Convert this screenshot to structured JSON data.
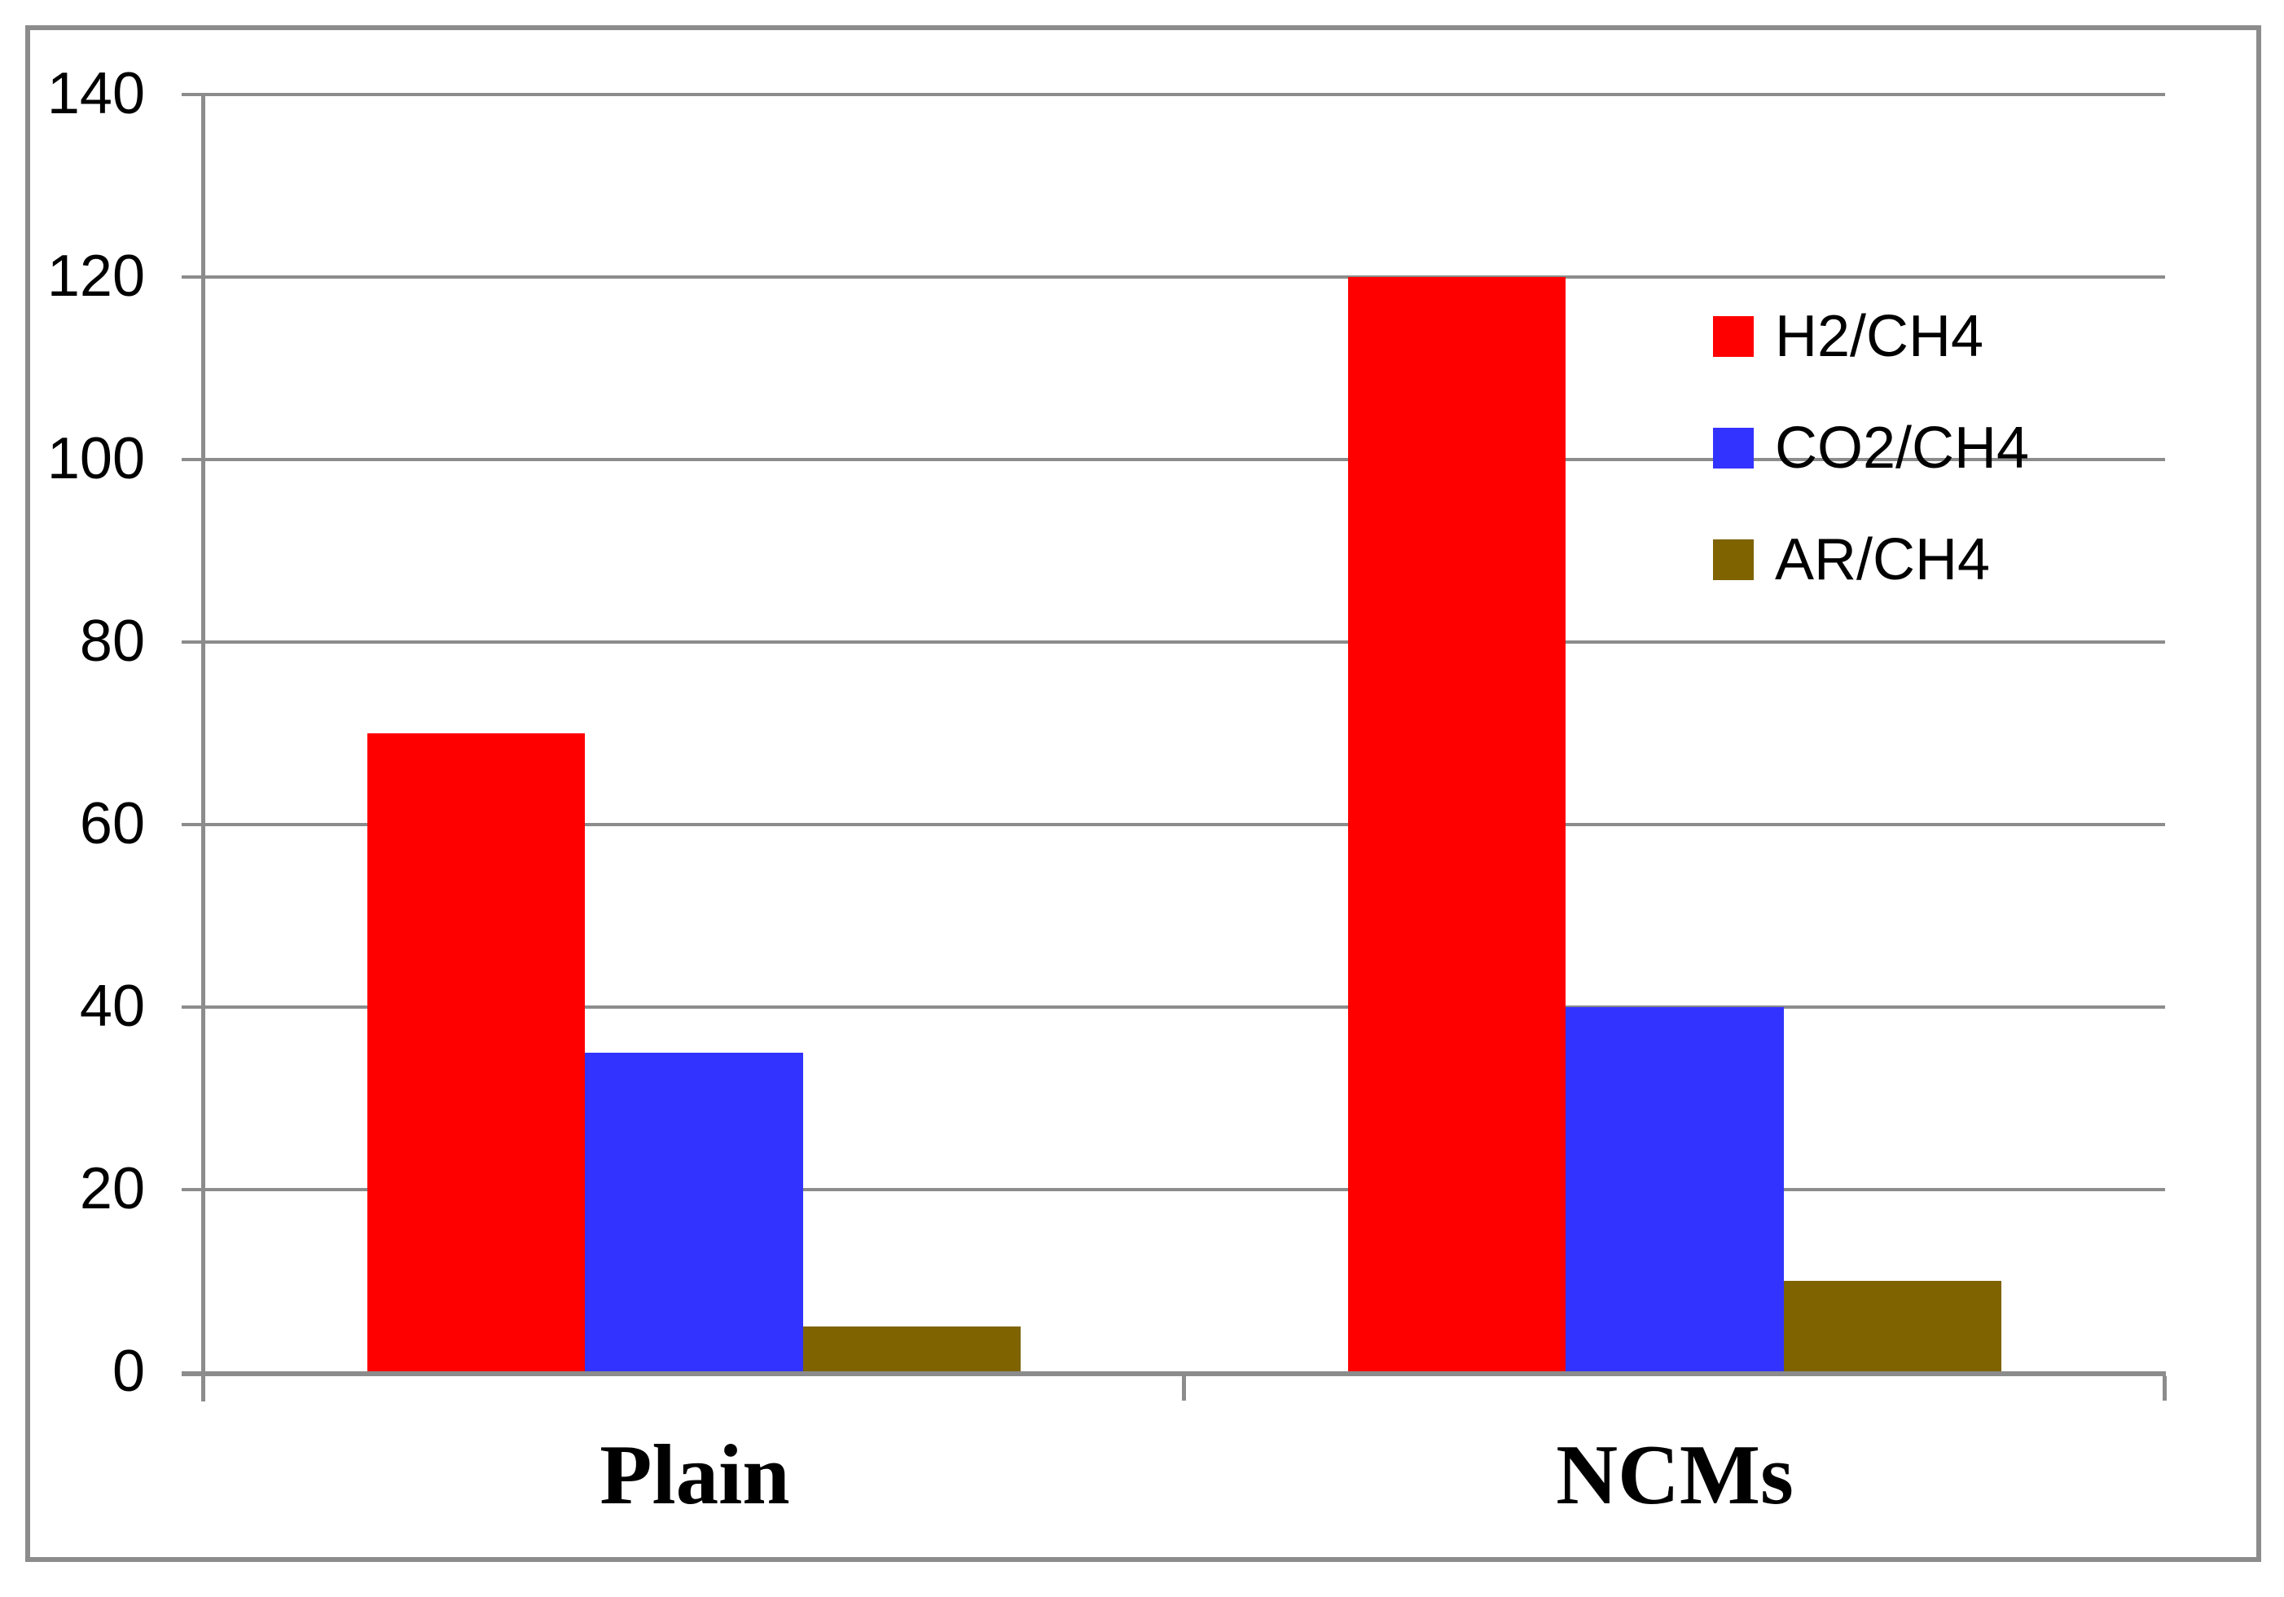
{
  "figure": {
    "background_color": "#FFFFFF",
    "frame_color": "#8C8C8C",
    "text_color": "#000000"
  },
  "chart_data": {
    "type": "bar",
    "title": "",
    "xlabel": "",
    "ylabel": "",
    "categories": [
      "Plain",
      "NCMs"
    ],
    "series": [
      {
        "name": "H2/CH4",
        "color": "#FF0000",
        "values": [
          70,
          120
        ]
      },
      {
        "name": "CO2/CH4",
        "color": "#3333FF",
        "values": [
          35,
          40
        ]
      },
      {
        "name": "AR/CH4",
        "color": "#7E6300",
        "values": [
          5,
          10
        ]
      }
    ],
    "ylim": [
      0,
      140
    ],
    "ytick_interval": 20,
    "yticks": [
      0,
      20,
      40,
      60,
      80,
      100,
      120,
      140
    ],
    "grid": true,
    "gridline_color": "#8C8C8C",
    "legend_position": "upper-right",
    "bar_gap_ratio": 1.5
  }
}
